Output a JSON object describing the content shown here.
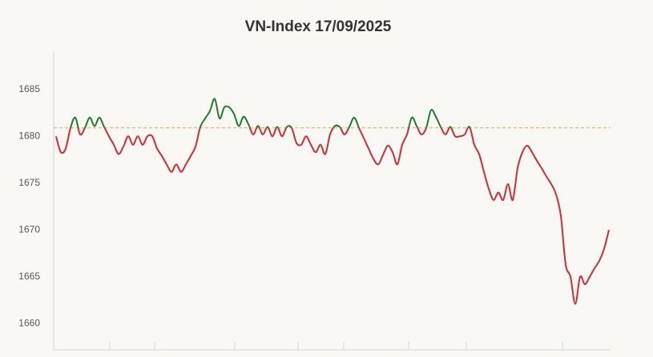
{
  "chart_data": {
    "type": "line",
    "title": "VN-Index 17/09/2025",
    "values": [
      1680.0,
      1678.3,
      1678.7,
      1680.9,
      1682.0,
      1680.2,
      1680.9,
      1682.0,
      1681.1,
      1682.0,
      1681.0,
      1680.0,
      1679.1,
      1678.1,
      1678.9,
      1680.0,
      1679.1,
      1680.0,
      1679.1,
      1680.0,
      1680.0,
      1678.7,
      1677.9,
      1677.0,
      1676.2,
      1677.0,
      1676.2,
      1677.0,
      1677.9,
      1678.9,
      1681.0,
      1681.9,
      1682.7,
      1684.0,
      1681.9,
      1683.1,
      1683.1,
      1682.4,
      1681.1,
      1682.1,
      1681.3,
      1680.2,
      1681.1,
      1680.2,
      1681.0,
      1680.0,
      1681.0,
      1680.0,
      1681.0,
      1680.9,
      1679.3,
      1679.1,
      1680.0,
      1679.1,
      1678.3,
      1679.1,
      1678.1,
      1680.2,
      1681.1,
      1681.0,
      1680.2,
      1681.0,
      1682.0,
      1680.9,
      1679.8,
      1678.7,
      1677.6,
      1677.0,
      1678.0,
      1679.0,
      1678.3,
      1677.0,
      1679.1,
      1680.2,
      1682.0,
      1681.1,
      1680.2,
      1680.9,
      1682.8,
      1682.1,
      1681.0,
      1680.2,
      1681.0,
      1680.0,
      1680.0,
      1680.2,
      1681.0,
      1679.1,
      1678.1,
      1676.2,
      1674.4,
      1673.2,
      1674.0,
      1673.2,
      1674.9,
      1673.2,
      1676.6,
      1678.3,
      1679.0,
      1678.3,
      1677.4,
      1676.6,
      1675.7,
      1674.9,
      1673.8,
      1671.5,
      1666.3,
      1665.0,
      1662.1,
      1665.0,
      1664.2,
      1665.0,
      1665.9,
      1666.7,
      1668.0,
      1670.0
    ],
    "reference_line": 1680.9,
    "reference_color": "#f0a050",
    "color_above": "#1f7a2e",
    "color_below": "#d42a35",
    "ylim": [
      1657.2,
      1689
    ],
    "yticks": [
      1660,
      1665,
      1670,
      1675,
      1680,
      1685
    ]
  }
}
